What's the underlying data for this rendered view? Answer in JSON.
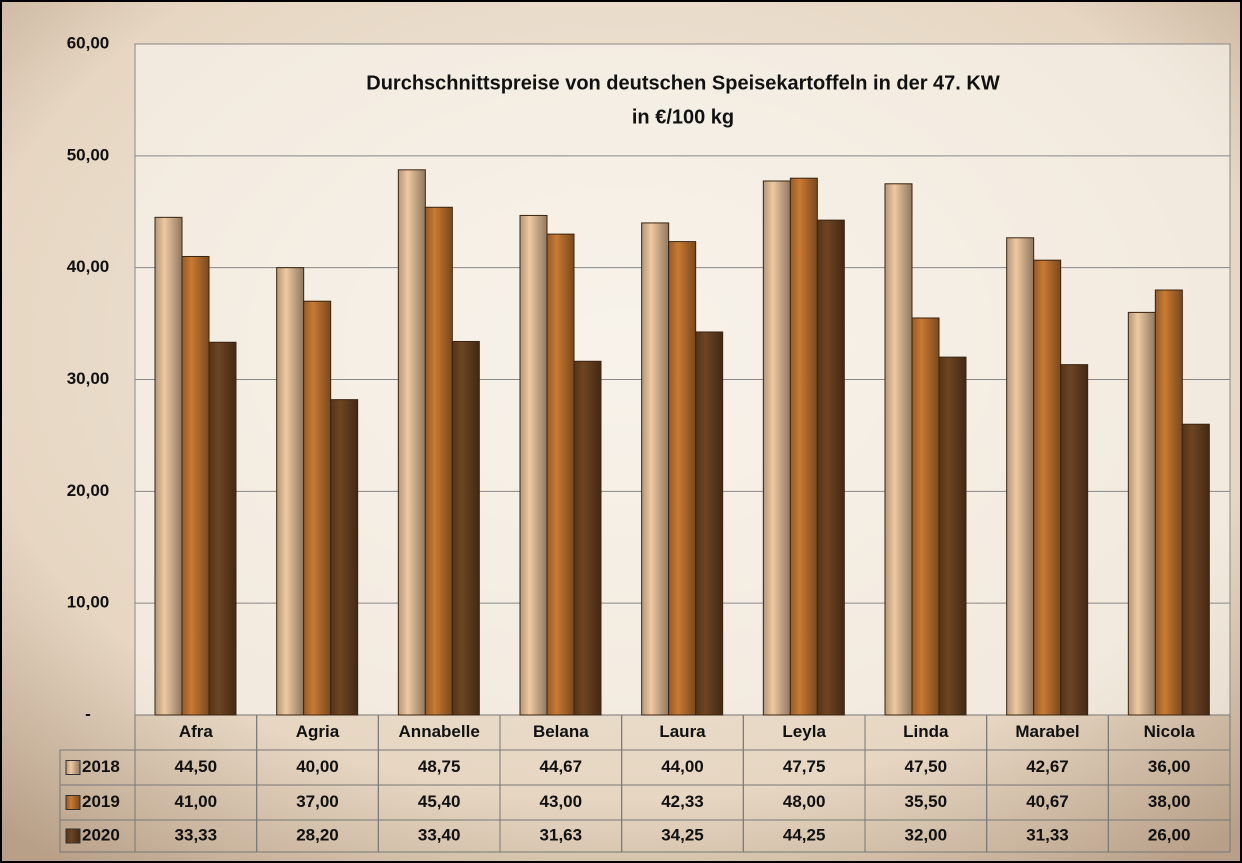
{
  "chart_data": {
    "type": "bar",
    "title": "Durchschnittspreise von deutschen Speisekartoffeln in der 47. KW",
    "subtitle": "in €/100 kg",
    "categories": [
      "Afra",
      "Agria",
      "Annabelle",
      "Belana",
      "Laura",
      "Leyla",
      "Linda",
      "Marabel",
      "Nicola"
    ],
    "series": [
      {
        "name": "2018",
        "color": "#efc9a1",
        "values": [
          44.5,
          40,
          48.75,
          44.67,
          44,
          47.75,
          47.5,
          42.67,
          36
        ],
        "value_labels": [
          "44,50",
          "40,00",
          "48,75",
          "44,67",
          "44,00",
          "47,75",
          "47,50",
          "42,67",
          "36,00"
        ]
      },
      {
        "name": "2019",
        "color": "#c97a32",
        "values": [
          41,
          37,
          45.4,
          43,
          42.33,
          48,
          35.5,
          40.67,
          38
        ],
        "value_labels": [
          "41,00",
          "37,00",
          "45,40",
          "43,00",
          "42,33",
          "48,00",
          "35,50",
          "40,67",
          "38,00"
        ]
      },
      {
        "name": "2020",
        "color": "#6e4522",
        "values": [
          33.33,
          28.2,
          33.4,
          31.63,
          34.25,
          44.25,
          32,
          31.33,
          26
        ],
        "value_labels": [
          "33,33",
          "28,20",
          "33,40",
          "31,63",
          "34,25",
          "44,25",
          "32,00",
          "31,33",
          "26,00"
        ]
      }
    ],
    "ylim": [
      0,
      60
    ],
    "yticks": [
      {
        "value": 0,
        "label": "-"
      },
      {
        "value": 10,
        "label": "10,00"
      },
      {
        "value": 20,
        "label": "20,00"
      },
      {
        "value": 30,
        "label": "30,00"
      },
      {
        "value": 40,
        "label": "40,00"
      },
      {
        "value": 50,
        "label": "50,00"
      },
      {
        "value": 60,
        "label": "60,00"
      }
    ],
    "grid": true
  }
}
